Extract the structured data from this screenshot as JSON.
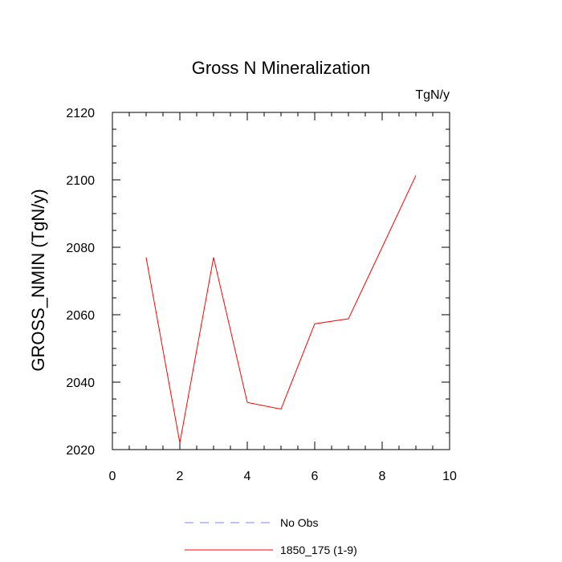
{
  "chart_data": {
    "type": "line",
    "title": "Gross N Mineralization",
    "units_label": "TgN/y",
    "ylabel": "GROSS_NMIN  (TgN/y)",
    "xlabel": "",
    "xlim": [
      0,
      10
    ],
    "ylim": [
      2020,
      2120
    ],
    "x_ticks": [
      0,
      2,
      4,
      6,
      8,
      10
    ],
    "y_ticks": [
      2020,
      2040,
      2060,
      2080,
      2100,
      2120
    ],
    "grid": false,
    "legend_position": "bottom-center",
    "series": [
      {
        "name": "No Obs",
        "style": "dashed",
        "color": "#8080ff",
        "x": [],
        "y": []
      },
      {
        "name": "1850_175 (1-9)",
        "style": "solid",
        "color": "#ff0000",
        "x": [
          1,
          2,
          3,
          4,
          5,
          6,
          7,
          8,
          9
        ],
        "y": [
          2077,
          2022,
          2077,
          2034,
          2032,
          2057.3,
          2058.8,
          2080,
          2101.3
        ]
      }
    ]
  }
}
